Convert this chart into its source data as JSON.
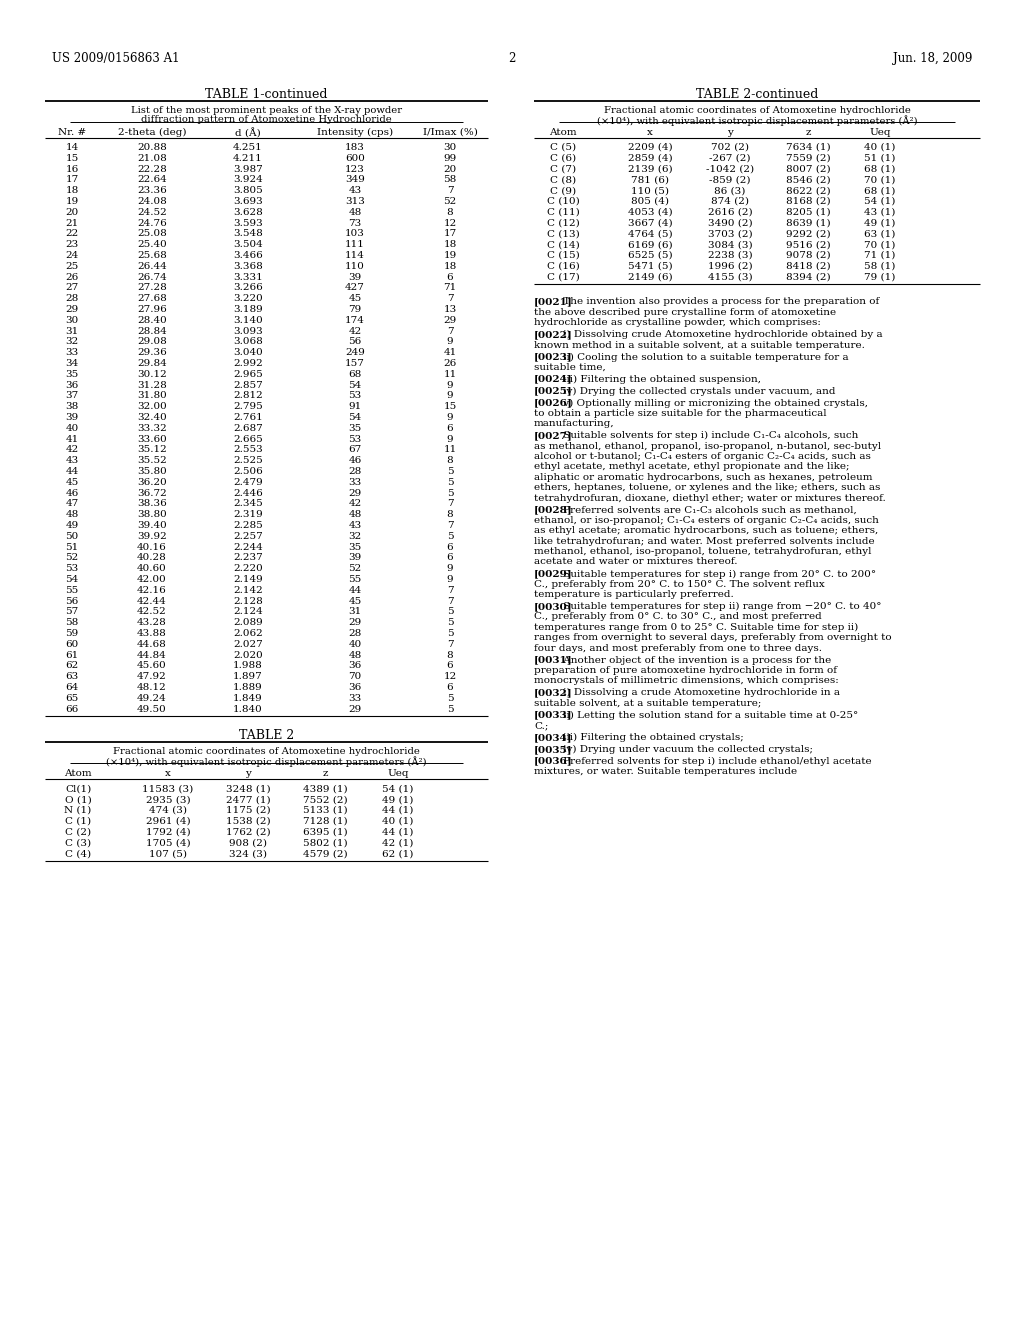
{
  "header_left": "US 2009/0156863 A1",
  "header_right": "Jun. 18, 2009",
  "page_number": "2",
  "table1_title": "TABLE 1-continued",
  "table1_subtitle1": "List of the most prominent peaks of the X-ray powder",
  "table1_subtitle2": "diffraction pattern of Atomoxetine Hydrochloride",
  "table1_headers": [
    "Nr. #",
    "2-theta (deg)",
    "d (Å)",
    "Intensity (cps)",
    "I/Imax (%)"
  ],
  "table1_data": [
    [
      14,
      20.88,
      4.251,
      183,
      30
    ],
    [
      15,
      21.08,
      4.211,
      600,
      99
    ],
    [
      16,
      22.28,
      3.987,
      123,
      20
    ],
    [
      17,
      22.64,
      3.924,
      349,
      58
    ],
    [
      18,
      23.36,
      3.805,
      43,
      7
    ],
    [
      19,
      24.08,
      3.693,
      313,
      52
    ],
    [
      20,
      24.52,
      3.628,
      48,
      8
    ],
    [
      21,
      24.76,
      3.593,
      73,
      12
    ],
    [
      22,
      25.08,
      3.548,
      103,
      17
    ],
    [
      23,
      25.4,
      3.504,
      111,
      18
    ],
    [
      24,
      25.68,
      3.466,
      114,
      19
    ],
    [
      25,
      26.44,
      3.368,
      110,
      18
    ],
    [
      26,
      26.74,
      3.331,
      39,
      6
    ],
    [
      27,
      27.28,
      3.266,
      427,
      71
    ],
    [
      28,
      27.68,
      3.22,
      45,
      7
    ],
    [
      29,
      27.96,
      3.189,
      79,
      13
    ],
    [
      30,
      28.4,
      3.14,
      174,
      29
    ],
    [
      31,
      28.84,
      3.093,
      42,
      7
    ],
    [
      32,
      29.08,
      3.068,
      56,
      9
    ],
    [
      33,
      29.36,
      3.04,
      249,
      41
    ],
    [
      34,
      29.84,
      2.992,
      157,
      26
    ],
    [
      35,
      30.12,
      2.965,
      68,
      11
    ],
    [
      36,
      31.28,
      2.857,
      54,
      9
    ],
    [
      37,
      31.8,
      2.812,
      53,
      9
    ],
    [
      38,
      32.0,
      2.795,
      91,
      15
    ],
    [
      39,
      32.4,
      2.761,
      54,
      9
    ],
    [
      40,
      33.32,
      2.687,
      35,
      6
    ],
    [
      41,
      33.6,
      2.665,
      53,
      9
    ],
    [
      42,
      35.12,
      2.553,
      67,
      11
    ],
    [
      43,
      35.52,
      2.525,
      46,
      8
    ],
    [
      44,
      35.8,
      2.506,
      28,
      5
    ],
    [
      45,
      36.2,
      2.479,
      33,
      5
    ],
    [
      46,
      36.72,
      2.446,
      29,
      5
    ],
    [
      47,
      38.36,
      2.345,
      42,
      7
    ],
    [
      48,
      38.8,
      2.319,
      48,
      8
    ],
    [
      49,
      39.4,
      2.285,
      43,
      7
    ],
    [
      50,
      39.92,
      2.257,
      32,
      5
    ],
    [
      51,
      40.16,
      2.244,
      35,
      6
    ],
    [
      52,
      40.28,
      2.237,
      39,
      6
    ],
    [
      53,
      40.6,
      2.22,
      52,
      9
    ],
    [
      54,
      42.0,
      2.149,
      55,
      9
    ],
    [
      55,
      42.16,
      2.142,
      44,
      7
    ],
    [
      56,
      42.44,
      2.128,
      45,
      7
    ],
    [
      57,
      42.52,
      2.124,
      31,
      5
    ],
    [
      58,
      43.28,
      2.089,
      29,
      5
    ],
    [
      59,
      43.88,
      2.062,
      28,
      5
    ],
    [
      60,
      44.68,
      2.027,
      40,
      7
    ],
    [
      61,
      44.84,
      2.02,
      48,
      8
    ],
    [
      62,
      45.6,
      1.988,
      36,
      6
    ],
    [
      63,
      47.92,
      1.897,
      70,
      12
    ],
    [
      64,
      48.12,
      1.889,
      36,
      6
    ],
    [
      65,
      49.24,
      1.849,
      33,
      5
    ],
    [
      66,
      49.5,
      1.84,
      29,
      5
    ]
  ],
  "table2_title": "TABLE 2",
  "table2_subtitle1": "Fractional atomic coordinates of Atomoxetine hydrochloride",
  "table2_subtitle2": "(×10⁴), with equivalent isotropic displacement parameters (Å²)",
  "table2_headers": [
    "Atom",
    "x",
    "y",
    "z",
    "Ueq"
  ],
  "table2_data": [
    [
      "Cl(1)",
      "11583 (3)",
      "3248 (1)",
      "4389 (1)",
      "54 (1)"
    ],
    [
      "O (1)",
      "2935 (3)",
      "2477 (1)",
      "7552 (2)",
      "49 (1)"
    ],
    [
      "N (1)",
      "474 (3)",
      "1175 (2)",
      "5133 (1)",
      "44 (1)"
    ],
    [
      "C (1)",
      "2961 (4)",
      "1538 (2)",
      "7128 (1)",
      "40 (1)"
    ],
    [
      "C (2)",
      "1792 (4)",
      "1762 (2)",
      "6395 (1)",
      "44 (1)"
    ],
    [
      "C (3)",
      "1705 (4)",
      "908 (2)",
      "5802 (1)",
      "42 (1)"
    ],
    [
      "C (4)",
      "107 (5)",
      "324 (3)",
      "4579 (2)",
      "62 (1)"
    ]
  ],
  "table2cont_title": "TABLE 2-continued",
  "table2cont_subtitle1": "Fractional atomic coordinates of Atomoxetine hydrochloride",
  "table2cont_subtitle2": "(×10⁴), with equivalent isotropic displacement parameters (Å²)",
  "table2cont_headers": [
    "Atom",
    "x",
    "y",
    "z",
    "Ueq"
  ],
  "table2cont_data": [
    [
      "C (5)",
      "2209 (4)",
      "702 (2)",
      "7634 (1)",
      "40 (1)"
    ],
    [
      "C (6)",
      "2859 (4)",
      "-267 (2)",
      "7559 (2)",
      "51 (1)"
    ],
    [
      "C (7)",
      "2139 (6)",
      "-1042 (2)",
      "8007 (2)",
      "68 (1)"
    ],
    [
      "C (8)",
      "781 (6)",
      "-859 (2)",
      "8546 (2)",
      "70 (1)"
    ],
    [
      "C (9)",
      "110 (5)",
      "86 (3)",
      "8622 (2)",
      "68 (1)"
    ],
    [
      "C (10)",
      "805 (4)",
      "874 (2)",
      "8168 (2)",
      "54 (1)"
    ],
    [
      "C (11)",
      "4053 (4)",
      "2616 (2)",
      "8205 (1)",
      "43 (1)"
    ],
    [
      "C (12)",
      "3667 (4)",
      "3490 (2)",
      "8639 (1)",
      "49 (1)"
    ],
    [
      "C (13)",
      "4764 (5)",
      "3703 (2)",
      "9292 (2)",
      "63 (1)"
    ],
    [
      "C (14)",
      "6169 (6)",
      "3084 (3)",
      "9516 (2)",
      "70 (1)"
    ],
    [
      "C (15)",
      "6525 (5)",
      "2238 (3)",
      "9078 (2)",
      "71 (1)"
    ],
    [
      "C (16)",
      "5471 (5)",
      "1996 (2)",
      "8418 (2)",
      "58 (1)"
    ],
    [
      "C (17)",
      "2149 (6)",
      "4155 (3)",
      "8394 (2)",
      "79 (1)"
    ]
  ],
  "body_paragraphs": [
    {
      "tag": "[0021]",
      "text": "The invention also provides a process for the preparation of the above described pure crystalline form of atomoxetine hydrochloride as crystalline powder, which comprises:"
    },
    {
      "tag": "[0022]",
      "text": "i) Dissolving crude Atomoxetine hydrochloride obtained by a known method in a suitable solvent, at a suitable temperature."
    },
    {
      "tag": "[0023]",
      "text": "ii) Cooling the solution to a suitable temperature for a suitable time,"
    },
    {
      "tag": "[0024]",
      "text": "iii) Filtering the obtained suspension,"
    },
    {
      "tag": "[0025]",
      "text": "iv) Drying the collected crystals under vacuum, and"
    },
    {
      "tag": "[0026]",
      "text": "v) Optionally milling or micronizing the obtained crystals, to obtain a particle size suitable for the pharmaceutical manufacturing,"
    },
    {
      "tag": "[0027]",
      "text": "Suitable solvents for step i) include C₁-C₄ alcohols, such as methanol, ethanol, propanol, iso-propanol, n-butanol, sec-butyl alcohol or t-butanol; C₁-C₄ esters of organic C₂-C₄ acids, such as ethyl acetate, methyl acetate, ethyl propionate and the like; aliphatic or aromatic hydrocarbons, such as hexanes, petroleum ethers, heptanes, toluene, or xylenes and the like; ethers, such as tetrahydrofuran, dioxane, diethyl ether; water or mixtures thereof."
    },
    {
      "tag": "[0028]",
      "text": "Preferred solvents are C₁-C₃ alcohols such as methanol, ethanol, or iso-propanol; C₁-C₄ esters of organic C₂-C₄ acids, such as ethyl acetate; aromatic hydrocarbons, such as toluene; ethers, like tetrahydrofuran; and water. Most preferred solvents include methanol, ethanol, iso-propanol, toluene, tetrahydrofuran, ethyl acetate and water or mixtures thereof."
    },
    {
      "tag": "[0029]",
      "text": "Suitable temperatures for step i) range from 20° C. to 200° C., preferably from 20° C. to 150° C. The solvent reflux temperature is particularly preferred."
    },
    {
      "tag": "[0030]",
      "text": "Suitable temperatures for step ii) range from −20° C. to 40° C., preferably from 0° C. to 30° C., and most preferred temperatures range from 0 to 25° C. Suitable time for step ii) ranges from overnight to several days, preferably from overnight to four days, and most preferably from one to three days."
    },
    {
      "tag": "[0031]",
      "text": "Another object of the invention is a process for the preparation of pure atomoxetine hydrochloride in form of monocrystals of millimetric dimensions, which comprises:"
    },
    {
      "tag": "[0032]",
      "text": "i) Dissolving a crude Atomoxetine hydrochloride in a suitable solvent, at a suitable temperature;"
    },
    {
      "tag": "[0033]",
      "text": "ii) Letting the solution stand for a suitable time at 0-25° C.;"
    },
    {
      "tag": "[0034]",
      "text": "iii) Filtering the obtained crystals;"
    },
    {
      "tag": "[0035]",
      "text": "iv) Drying under vacuum the collected crystals;"
    },
    {
      "tag": "[0036]",
      "text": "Preferred solvents for step i) include ethanol/ethyl acetate mixtures, or water. Suitable temperatures include"
    }
  ],
  "background_color": "#ffffff",
  "text_color": "#000000"
}
